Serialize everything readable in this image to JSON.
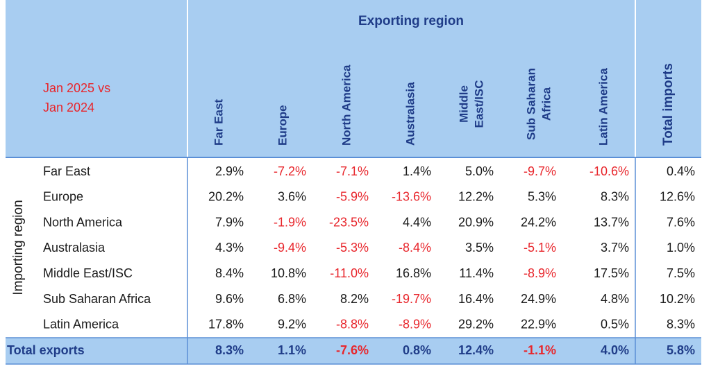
{
  "header": {
    "title": "Exporting region",
    "period": [
      "Jan 2025 vs",
      "Jan 2024"
    ],
    "row_group_label": "Importing region",
    "columns": [
      [
        "Far East"
      ],
      [
        "Europe"
      ],
      [
        "North America"
      ],
      [
        "Australasia"
      ],
      [
        "Middle",
        "East/ISC"
      ],
      [
        "Sub Saharan",
        "Africa"
      ],
      [
        "Latin America"
      ],
      [
        "Total imports"
      ]
    ]
  },
  "table": {
    "rows": [
      {
        "label": "Far East",
        "cells": [
          "2.9%",
          "-7.2%",
          "-7.1%",
          "1.4%",
          "5.0%",
          "-9.7%",
          "-10.6%",
          "0.4%"
        ]
      },
      {
        "label": "Europe",
        "cells": [
          "20.2%",
          "3.6%",
          "-5.9%",
          "-13.6%",
          "12.2%",
          "5.3%",
          "8.3%",
          "12.6%"
        ]
      },
      {
        "label": "North America",
        "cells": [
          "7.9%",
          "-1.9%",
          "-23.5%",
          "4.4%",
          "20.9%",
          "24.2%",
          "13.7%",
          "7.6%"
        ]
      },
      {
        "label": "Australasia",
        "cells": [
          "4.3%",
          "-9.4%",
          "-5.3%",
          "-8.4%",
          "3.5%",
          "-5.1%",
          "3.7%",
          "1.0%"
        ]
      },
      {
        "label": "Middle East/ISC",
        "cells": [
          "8.4%",
          "10.8%",
          "-11.0%",
          "16.8%",
          "11.4%",
          "-8.9%",
          "17.5%",
          "7.5%"
        ]
      },
      {
        "label": "Sub Saharan Africa",
        "cells": [
          "9.6%",
          "6.8%",
          "8.2%",
          "-19.7%",
          "16.4%",
          "24.9%",
          "4.8%",
          "10.2%"
        ]
      },
      {
        "label": "Latin America",
        "cells": [
          "17.8%",
          "9.2%",
          "-8.8%",
          "-8.9%",
          "29.2%",
          "22.9%",
          "0.5%",
          "8.3%"
        ]
      }
    ],
    "total": {
      "label": "Total exports",
      "cells": [
        "8.3%",
        "1.1%",
        "-7.6%",
        "0.8%",
        "12.4%",
        "-1.1%",
        "4.0%",
        "5.8%"
      ]
    }
  }
}
